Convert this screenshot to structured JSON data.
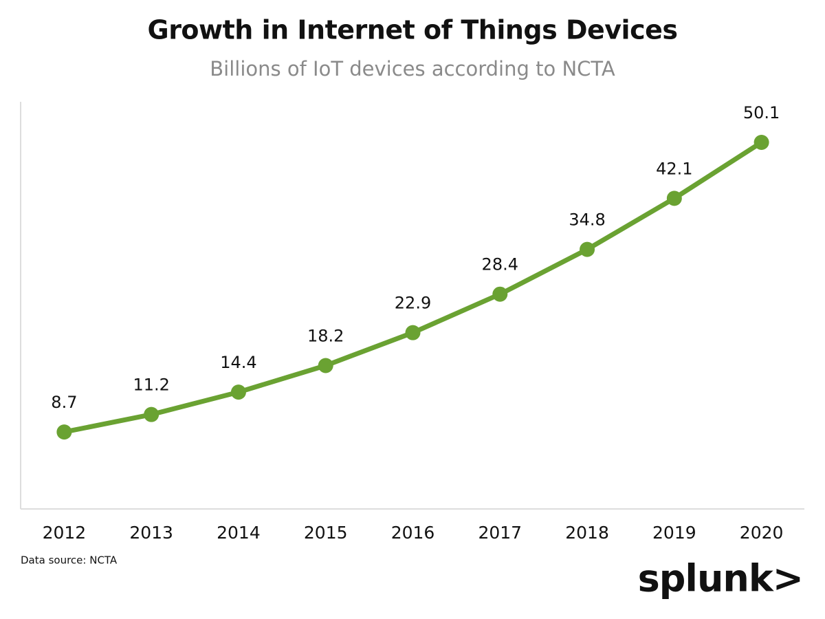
{
  "chart_data": {
    "type": "line",
    "title": "Growth in Internet of Things Devices",
    "subtitle": "Billions of IoT devices according to NCTA",
    "categories": [
      "2012",
      "2013",
      "2014",
      "2015",
      "2016",
      "2017",
      "2018",
      "2019",
      "2020"
    ],
    "series": [
      {
        "name": "IoT devices",
        "color": "#6aa232",
        "values": [
          8.7,
          11.2,
          14.4,
          18.2,
          22.9,
          28.4,
          34.8,
          42.1,
          50.1
        ]
      }
    ],
    "ylim": [
      -2.3,
      55.9
    ],
    "note": "Data source: NCTA",
    "logo": "splunk>"
  }
}
